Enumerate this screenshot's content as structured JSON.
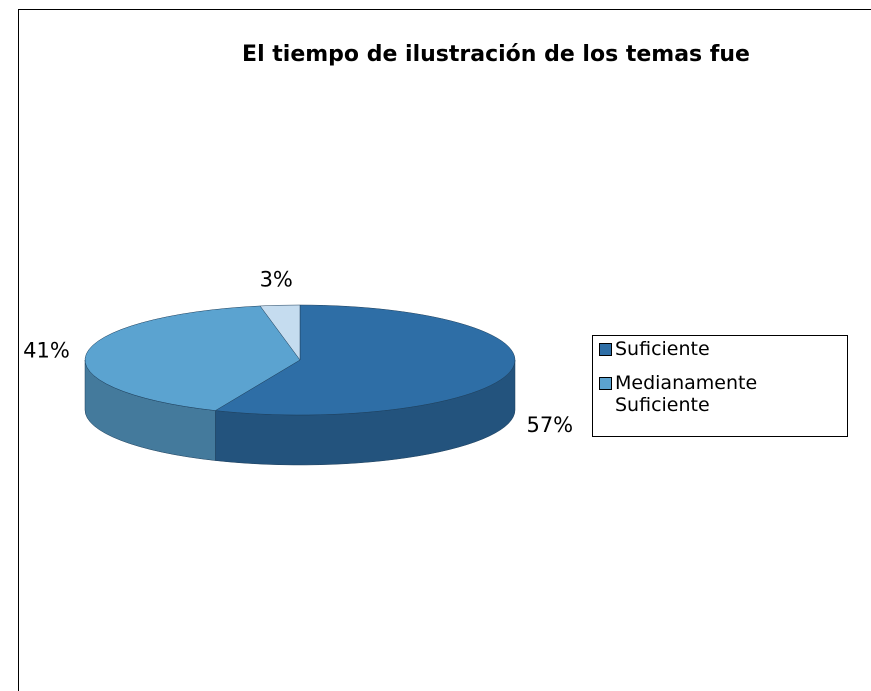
{
  "chart_data": {
    "type": "pie",
    "title": "El tiempo de ilustración de los temas fue",
    "categories": [
      "Suficiente",
      "Medianamente Suficiente",
      null
    ],
    "values": [
      57,
      41,
      3
    ],
    "value_labels": [
      "57%",
      "41%",
      "3%"
    ],
    "colors": [
      "#2e6ea6",
      "#5ba3d0",
      "#c5dcef"
    ],
    "legend": "right"
  }
}
